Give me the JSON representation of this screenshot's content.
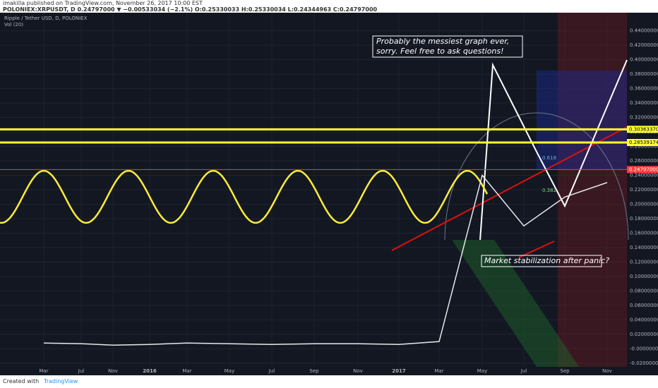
{
  "header": {
    "publisher_line": "imakilla published on TradingView.com, November 26, 2017 10:00 EST",
    "symbol_line": "POLONIEX:XRPUSDT, D 0.24797000 ▼ −0.00533034 (−2.1%) O:0.25330033 H:0.25330034 L:0.24344963 C:0.24797000"
  },
  "chart_data": {
    "type": "line",
    "title": "Ripple / Tether USD, D, POLONIEX",
    "subtitle": "Vol (20)",
    "categories": [
      "Mar",
      "Jul",
      "Nov",
      "2016",
      "Mar",
      "May",
      "Jul",
      "Sep",
      "Nov",
      "2017",
      "Mar",
      "May",
      "Jul",
      "Sep",
      "Nov"
    ],
    "series": [
      {
        "name": "XRPUSDT",
        "color": "#e8e8e8",
        "values": [
          0.008,
          0.007,
          0.005,
          0.006,
          0.008,
          0.007,
          0.006,
          0.007,
          0.007,
          0.006,
          0.01,
          0.24,
          0.17,
          0.21,
          0.23
        ]
      }
    ],
    "ylim": [
      -0.025,
      0.465
    ],
    "yticks": [
      {
        "value": 0.44,
        "label": "0.44000000"
      },
      {
        "value": 0.42,
        "label": "0.42000000"
      },
      {
        "value": 0.4,
        "label": "0.40000000"
      },
      {
        "value": 0.38,
        "label": "0.38000000"
      },
      {
        "value": 0.36,
        "label": "0.36000000"
      },
      {
        "value": 0.34,
        "label": "0.34000000"
      },
      {
        "value": 0.32,
        "label": "0.32000000"
      },
      {
        "value": 0.3,
        "label": "0.30000000"
      },
      {
        "value": 0.28,
        "label": "0.28000000"
      },
      {
        "value": 0.26,
        "label": "0.26000000"
      },
      {
        "value": 0.24,
        "label": "0.24000000"
      },
      {
        "value": 0.22,
        "label": "0.22000000"
      },
      {
        "value": 0.2,
        "label": "0.20000000"
      },
      {
        "value": 0.18,
        "label": "0.18000000"
      },
      {
        "value": 0.16,
        "label": "0.16000000"
      },
      {
        "value": 0.14,
        "label": "0.14000000"
      },
      {
        "value": 0.12,
        "label": "0.12000000"
      },
      {
        "value": 0.1,
        "label": "0.10000000"
      },
      {
        "value": 0.08,
        "label": "0.08000000"
      },
      {
        "value": 0.06,
        "label": "0.06000000"
      },
      {
        "value": 0.04,
        "label": "0.04000000"
      },
      {
        "value": 0.02,
        "label": "0.02000000"
      },
      {
        "value": 0,
        "label": "-0.00000000"
      },
      {
        "value": -0.02,
        "label": "-0.02000000"
      }
    ],
    "price_levels": [
      {
        "value": 0.3036337,
        "label": "0.30363370",
        "color": "#ffff33"
      },
      {
        "value": 0.28539174,
        "label": "0.28539174",
        "color": "#ffff33"
      },
      {
        "value": 0.24797,
        "label": "0.24797000",
        "color": "#ff3b3b"
      }
    ],
    "annotations": [
      "Probably the messiest graph ever,",
      "sorry. Feel free to ask questions!",
      "Market stabilization after panic?"
    ],
    "fib_labels": [
      "0.618",
      "0.382"
    ]
  },
  "footer": {
    "created": "Created with",
    "brand": "TradingView"
  }
}
